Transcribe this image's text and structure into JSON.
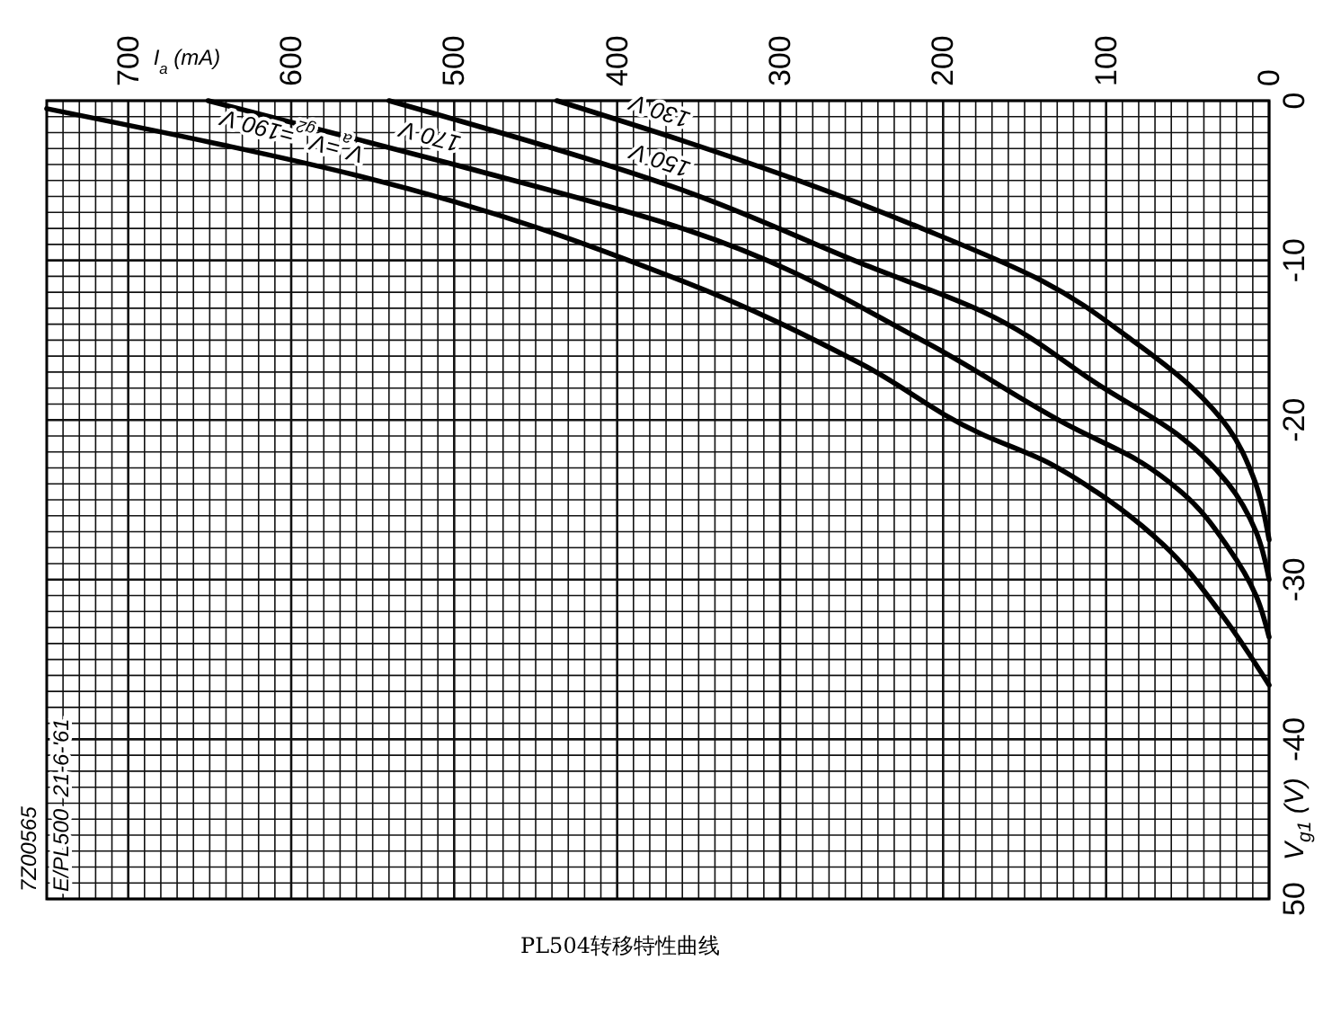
{
  "chart_data": {
    "type": "line",
    "title": "PL504转移特性曲线",
    "xlabel": "I$_{a}$ (mA)",
    "ylabel": "V$_{g1}$ (V)",
    "annotations": [
      "7Z00565",
      "E/PL500  21-6-'61"
    ],
    "xlim": [
      750,
      0
    ],
    "ylim": [
      -50,
      0
    ],
    "xticks": [
      0,
      {
        "value": 10,
        "label": null
      },
      {
        "value": 20,
        "label": null
      },
      {
        "value": 30,
        "label": null
      },
      {
        "value": 40,
        "label": null
      },
      {
        "value": 50,
        "label": null
      },
      {
        "value": 60,
        "label": null
      },
      {
        "value": 70,
        "label": null
      },
      {
        "value": 80,
        "label": null
      },
      {
        "value": 90,
        "label": null
      },
      100,
      {
        "value": 110,
        "label": null
      },
      {
        "value": 120,
        "label": null
      },
      {
        "value": 130,
        "label": null
      },
      {
        "value": 140,
        "label": null
      },
      {
        "value": 150,
        "label": null
      },
      {
        "value": 160,
        "label": null
      },
      {
        "value": 170,
        "label": null
      },
      {
        "value": 180,
        "label": null
      },
      {
        "value": 190,
        "label": null
      },
      200,
      {
        "value": 210,
        "label": null
      },
      {
        "value": 220,
        "label": null
      },
      {
        "value": 230,
        "label": null
      },
      {
        "value": 240,
        "label": null
      },
      {
        "value": 250,
        "label": null
      },
      {
        "value": 260,
        "label": null
      },
      {
        "value": 270,
        "label": null
      },
      {
        "value": 280,
        "label": null
      },
      {
        "value": 290,
        "label": null
      },
      300,
      {
        "value": 310,
        "label": null
      },
      {
        "value": 320,
        "label": null
      },
      {
        "value": 330,
        "label": null
      },
      {
        "value": 340,
        "label": null
      },
      {
        "value": 350,
        "label": null
      },
      {
        "value": 360,
        "label": null
      },
      {
        "value": 370,
        "label": null
      },
      {
        "value": 380,
        "label": null
      },
      {
        "value": 390,
        "label": null
      },
      400,
      {
        "value": 410,
        "label": null
      },
      {
        "value": 420,
        "label": null
      },
      {
        "value": 430,
        "label": null
      },
      {
        "value": 440,
        "label": null
      },
      {
        "value": 450,
        "label": null
      },
      {
        "value": 460,
        "label": null
      },
      {
        "value": 470,
        "label": null
      },
      {
        "value": 480,
        "label": null
      },
      {
        "value": 490,
        "label": null
      },
      500,
      {
        "value": 510,
        "label": null
      },
      {
        "value": 520,
        "label": null
      },
      {
        "value": 530,
        "label": null
      },
      {
        "value": 540,
        "label": null
      },
      {
        "value": 550,
        "label": null
      },
      {
        "value": 560,
        "label": null
      },
      {
        "value": 570,
        "label": null
      },
      {
        "value": 580,
        "label": null
      },
      {
        "value": 590,
        "label": null
      },
      600,
      {
        "value": 610,
        "label": null
      },
      {
        "value": 620,
        "label": null
      },
      {
        "value": 630,
        "label": null
      },
      {
        "value": 640,
        "label": null
      },
      {
        "value": 650,
        "label": null
      },
      {
        "value": 660,
        "label": null
      },
      {
        "value": 670,
        "label": null
      },
      {
        "value": 680,
        "label": null
      },
      {
        "value": 690,
        "label": null
      },
      700,
      {
        "value": 710,
        "label": null
      },
      {
        "value": 720,
        "label": null
      },
      {
        "value": 730,
        "label": null
      },
      {
        "value": 740,
        "label": null
      },
      {
        "value": 750,
        "label": null
      }
    ],
    "yticks": [
      0,
      {
        "value": -1,
        "label": null
      },
      {
        "value": -2,
        "label": null
      },
      {
        "value": -3,
        "label": null
      },
      {
        "value": -4,
        "label": null
      },
      {
        "value": -5,
        "label": null
      },
      {
        "value": -6,
        "label": null
      },
      {
        "value": -7,
        "label": null
      },
      {
        "value": -8,
        "label": null
      },
      {
        "value": -9,
        "label": null
      },
      -10,
      {
        "value": -11,
        "label": null
      },
      {
        "value": -12,
        "label": null
      },
      {
        "value": -13,
        "label": null
      },
      {
        "value": -14,
        "label": null
      },
      {
        "value": -15,
        "label": null
      },
      {
        "value": -16,
        "label": null
      },
      {
        "value": -17,
        "label": null
      },
      {
        "value": -18,
        "label": null
      },
      {
        "value": -19,
        "label": null
      },
      -20,
      {
        "value": -21,
        "label": null
      },
      {
        "value": -22,
        "label": null
      },
      {
        "value": -23,
        "label": null
      },
      {
        "value": -24,
        "label": null
      },
      {
        "value": -25,
        "label": null
      },
      {
        "value": -26,
        "label": null
      },
      {
        "value": -27,
        "label": null
      },
      {
        "value": -28,
        "label": null
      },
      {
        "value": -29,
        "label": null
      },
      -30,
      {
        "value": -31,
        "label": null
      },
      {
        "value": -32,
        "label": null
      },
      {
        "value": -33,
        "label": null
      },
      {
        "value": -34,
        "label": null
      },
      {
        "value": -35,
        "label": null
      },
      {
        "value": -36,
        "label": null
      },
      {
        "value": -37,
        "label": null
      },
      {
        "value": -38,
        "label": null
      },
      {
        "value": -39,
        "label": null
      },
      -40,
      {
        "value": -41,
        "label": null
      },
      {
        "value": -42,
        "label": null
      },
      {
        "value": -43,
        "label": null
      },
      {
        "value": -44,
        "label": null
      },
      {
        "value": -45,
        "label": null
      },
      {
        "value": -46,
        "label": null
      },
      {
        "value": -47,
        "label": null
      },
      {
        "value": -48,
        "label": null
      },
      {
        "value": -49,
        "label": null
      },
      {
        "value": -50,
        "label": "50"
      }
    ],
    "grid": true,
    "line_style": "solid",
    "marker": "none",
    "series": [
      {
        "name": "130 V",
        "color": "#000000",
        "x": [
          437,
          360,
          286,
          213,
          139,
          84,
          47,
          25,
          10,
          0
        ],
        "values": [
          0,
          -2.5,
          -5.1,
          -8,
          -11.3,
          -15,
          -18,
          -20.5,
          -23.5,
          -27.5
        ]
      },
      {
        "name": "150 V",
        "color": "#000000",
        "x": [
          540,
          360,
          250,
          176,
          103,
          55,
          25,
          8,
          0
        ],
        "values": [
          0,
          -5.6,
          -10.2,
          -13.2,
          -17.9,
          -21,
          -24,
          -27,
          -30
        ]
      },
      {
        "name": "170 V",
        "color": "#000000",
        "x": [
          651,
          500,
          360,
          213,
          120,
          81,
          54,
          25,
          8,
          0
        ],
        "values": [
          0,
          -4,
          -8,
          -15,
          -20.5,
          -22.5,
          -24.5,
          -28,
          -31,
          -33.6
        ]
      },
      {
        "name": "V$_{a}$=V$_{g2}$=190 V",
        "color": "#000000",
        "x": [
          750,
          559,
          360,
          250,
          176,
          139,
          106,
          65,
          29,
          0
        ],
        "values": [
          -0.5,
          -4.7,
          -11.3,
          -16.5,
          -20.9,
          -22.5,
          -24.5,
          -27.8,
          -32.2,
          -36.6
        ]
      }
    ]
  }
}
